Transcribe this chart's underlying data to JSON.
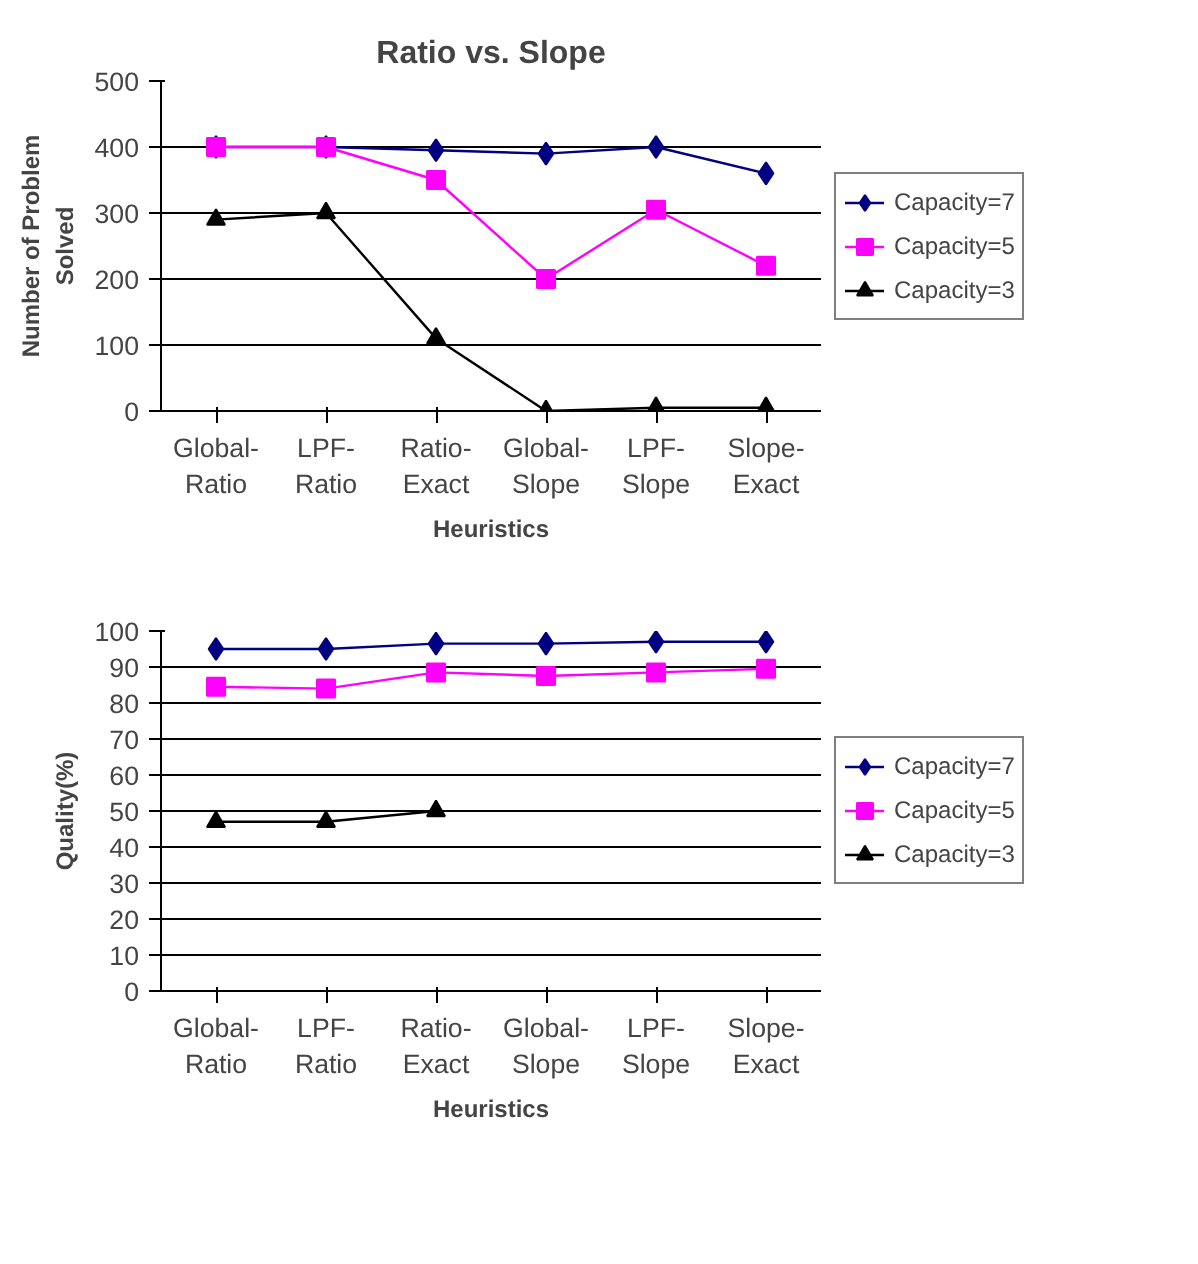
{
  "chart_data": [
    {
      "type": "line",
      "title": "Ratio vs. Slope",
      "xlabel": "Heuristics",
      "ylabel": "Number of Problem\nSolved",
      "categories": [
        "Global-\nRatio",
        "LPF-\nRatio",
        "Ratio-\nExact",
        "Global-\nSlope",
        "LPF-\nSlope",
        "Slope-\nExact"
      ],
      "ylim": [
        0,
        500
      ],
      "yticks": [
        0,
        100,
        200,
        300,
        400,
        500
      ],
      "grid": "y",
      "legend": "right",
      "series": [
        {
          "name": "Capacity=7",
          "color": "#000080",
          "marker": "diamond",
          "values": [
            400,
            400,
            395,
            390,
            400,
            360
          ]
        },
        {
          "name": "Capacity=5",
          "color": "#ff00ff",
          "marker": "square",
          "values": [
            400,
            400,
            350,
            200,
            305,
            220
          ]
        },
        {
          "name": "Capacity=3",
          "color": "#000000",
          "marker": "triangle",
          "values": [
            290,
            300,
            110,
            0,
            5,
            5
          ]
        }
      ]
    },
    {
      "type": "line",
      "xlabel": "Heuristics",
      "ylabel": "Quality(%)",
      "categories": [
        "Global-\nRatio",
        "LPF-\nRatio",
        "Ratio-\nExact",
        "Global-\nSlope",
        "LPF-\nSlope",
        "Slope-\nExact"
      ],
      "ylim": [
        0,
        100
      ],
      "yticks": [
        0,
        10,
        20,
        30,
        40,
        50,
        60,
        70,
        80,
        90,
        100
      ],
      "grid": "y",
      "legend": "right",
      "series": [
        {
          "name": "Capacity=7",
          "color": "#000080",
          "marker": "diamond",
          "values": [
            95,
            95,
            96.5,
            96.5,
            97,
            97
          ]
        },
        {
          "name": "Capacity=5",
          "color": "#ff00ff",
          "marker": "square",
          "values": [
            84.5,
            84,
            88.5,
            87.5,
            88.5,
            89.5
          ]
        },
        {
          "name": "Capacity=3",
          "color": "#000000",
          "marker": "triangle",
          "values": [
            47,
            47,
            50,
            null,
            null,
            null
          ]
        }
      ]
    }
  ]
}
